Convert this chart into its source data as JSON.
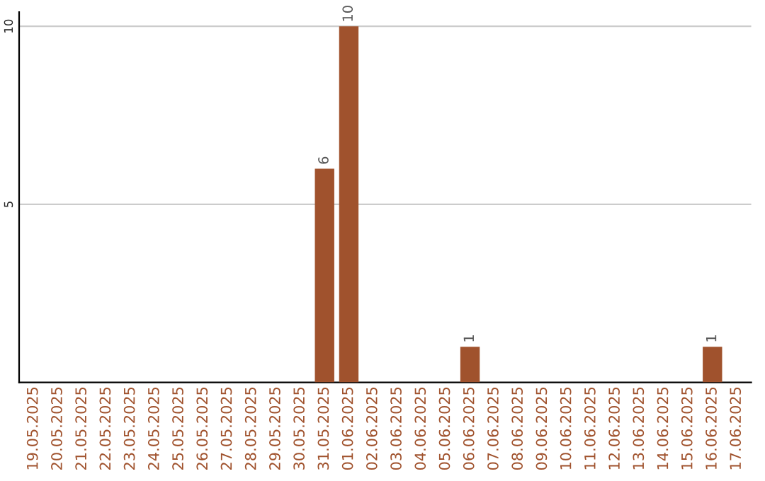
{
  "chart_data": {
    "type": "bar",
    "categories": [
      "19.05.2025",
      "20.05.2025",
      "21.05.2025",
      "22.05.2025",
      "23.05.2025",
      "24.05.2025",
      "25.05.2025",
      "26.05.2025",
      "27.05.2025",
      "28.05.2025",
      "29.05.2025",
      "30.05.2025",
      "31.05.2025",
      "01.06.2025",
      "02.06.2025",
      "03.06.2025",
      "04.06.2025",
      "05.06.2025",
      "06.06.2025",
      "07.06.2025",
      "08.06.2025",
      "09.06.2025",
      "10.06.2025",
      "11.06.2025",
      "12.06.2025",
      "13.06.2025",
      "14.06.2025",
      "15.06.2025",
      "16.06.2025",
      "17.06.2025"
    ],
    "values": [
      0,
      0,
      0,
      0,
      0,
      0,
      0,
      0,
      0,
      0,
      0,
      0,
      6,
      10,
      0,
      0,
      0,
      0,
      1,
      0,
      0,
      0,
      0,
      0,
      0,
      0,
      0,
      0,
      1,
      0
    ],
    "value_labels": [
      null,
      null,
      null,
      null,
      null,
      null,
      null,
      null,
      null,
      null,
      null,
      null,
      "6",
      "10",
      null,
      null,
      null,
      null,
      "1",
      null,
      null,
      null,
      null,
      null,
      null,
      null,
      null,
      null,
      "1",
      null
    ],
    "color": "#a0522d",
    "ylim": [
      0,
      10.4
    ],
    "yticks": [
      5,
      10
    ],
    "grid": "y",
    "legend": false
  }
}
